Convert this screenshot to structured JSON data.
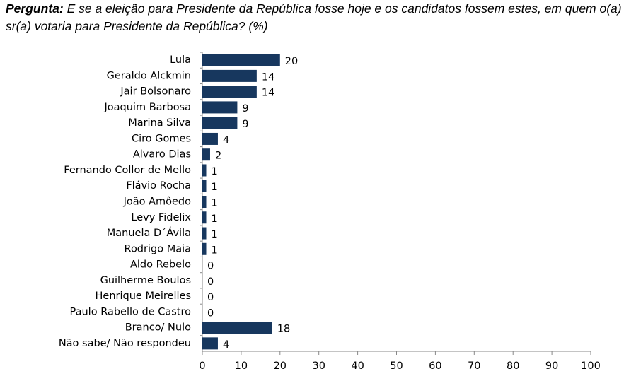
{
  "chart_data": {
    "type": "barh",
    "title_label": "Pergunta:",
    "title": "E se a eleição para Presidente da República fosse hoje e os candidatos fossem estes, em quem o(a) sr(a) votaria para Presidente da República? (%)",
    "categories": [
      "Lula",
      "Geraldo Alckmin",
      "Jair Bolsonaro",
      "Joaquim Barbosa",
      "Marina Silva",
      "Ciro Gomes",
      "Alvaro Dias",
      "Fernando Collor de Mello",
      "Flávio Rocha",
      "João Amôedo",
      "Levy Fidelix",
      "Manuela D´Ávila",
      "Rodrigo Maia",
      "Aldo Rebelo",
      "Guilherme Boulos",
      "Henrique Meirelles",
      "Paulo Rabello de Castro",
      "Branco/ Nulo",
      "Não sabe/ Não respondeu"
    ],
    "values": [
      20,
      14,
      14,
      9,
      9,
      4,
      2,
      1,
      1,
      1,
      1,
      1,
      1,
      0,
      0,
      0,
      0,
      18,
      4
    ],
    "color": "#17375e",
    "xlim": [
      0,
      100
    ],
    "xticks": [
      0,
      10,
      20,
      30,
      40,
      50,
      60,
      70,
      80,
      90,
      100
    ]
  }
}
